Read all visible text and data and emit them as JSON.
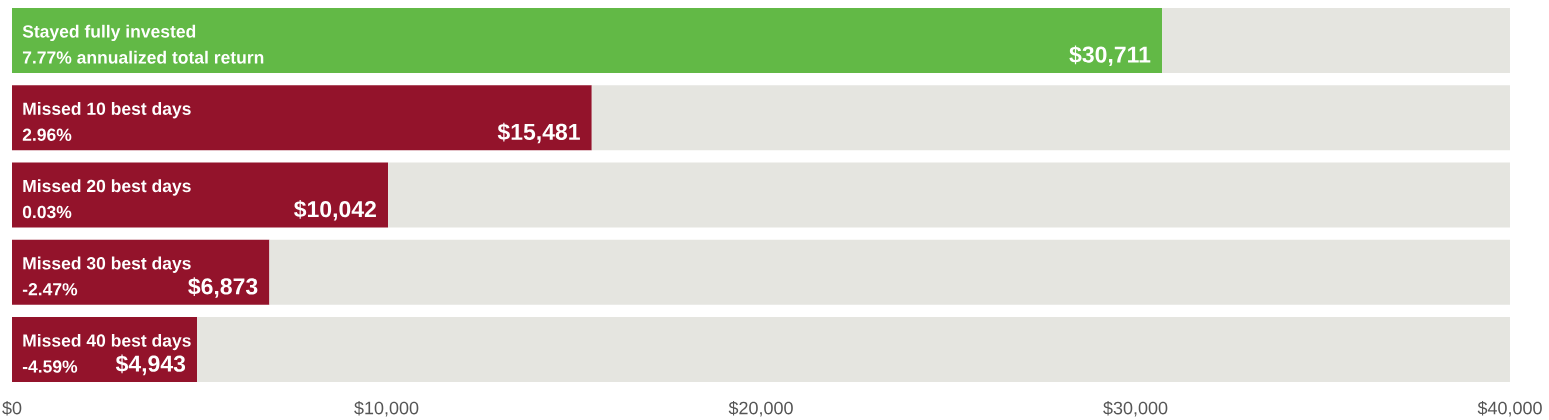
{
  "chart_data": {
    "type": "bar",
    "orientation": "horizontal",
    "stacked": true,
    "categories": [
      "Stayed fully invested",
      "Missed 10 best days",
      "Missed 20 best days",
      "Missed 30 best days",
      "Missed 40 best days"
    ],
    "series": [
      {
        "colors": [
          "#62b946",
          "#93132b",
          "#93132b",
          "#93132b",
          "#93132b"
        ],
        "values": [
          30711,
          15481,
          10042,
          6873,
          4943
        ],
        "value_labels": [
          "$30,711",
          "$15,481",
          "$10,042",
          "$6,873",
          "$4,943"
        ]
      },
      {
        "color": "#e5e5e0",
        "values": [
          9289,
          24519,
          29958,
          33127,
          35057
        ]
      }
    ],
    "annotations": [
      "7.77% annualized total return",
      "2.96%",
      "0.03%",
      "-2.47%",
      "-4.59%"
    ],
    "xlim": [
      0,
      40000
    ],
    "xticks": [
      {
        "value": 0,
        "label": "$0"
      },
      {
        "value": 10000,
        "label": "$10,000"
      },
      {
        "value": 20000,
        "label": "$20,000"
      },
      {
        "value": 30000,
        "label": "$30,000"
      },
      {
        "value": 40000,
        "label": "$40,000"
      }
    ]
  }
}
